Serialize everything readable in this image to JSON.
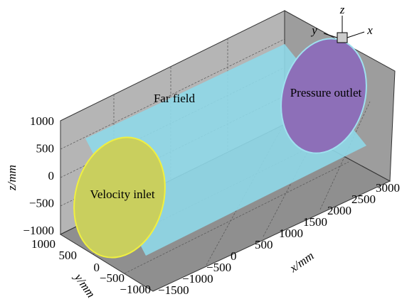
{
  "labels": {
    "far_field": "Far field",
    "velocity_inlet": "Velocity inlet",
    "pressure_outlet": "Pressure outlet"
  },
  "z_axis": {
    "label": "z/mm",
    "ticks": [
      "1000",
      "500",
      "0",
      "−500",
      "−1000"
    ]
  },
  "y_axis": {
    "label": "y/mm",
    "ticks": [
      "1000",
      "500",
      "0",
      "−500",
      "−1000"
    ]
  },
  "x_axis": {
    "label": "x/mm",
    "ticks": [
      "−1500",
      "−1000",
      "−500",
      "0",
      "500",
      "1000",
      "1500",
      "2000",
      "2500",
      "3000"
    ]
  },
  "triad": {
    "z": "z",
    "y": "y",
    "x": "x"
  }
}
